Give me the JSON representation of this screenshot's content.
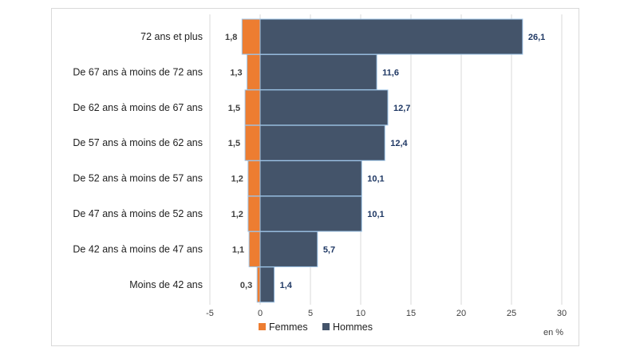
{
  "chart_data": {
    "type": "bar",
    "orientation": "horizontal",
    "stacked": true,
    "categories": [
      "72 ans et plus",
      "De 67 ans à moins de 72 ans",
      "De 62 ans à moins de 67 ans",
      "De 57 ans à moins de 62 ans",
      "De 52 ans à moins de 57 ans",
      "De 47 ans à moins de 52 ans",
      "De 42 ans à moins de 47 ans",
      "Moins de 42 ans"
    ],
    "series": [
      {
        "name": "Femmes",
        "color": "#ed7d31",
        "direction": "negative",
        "values": [
          1.8,
          1.3,
          1.5,
          1.5,
          1.2,
          1.2,
          1.1,
          0.3
        ],
        "labels": [
          "1,8",
          "1,3",
          "1,5",
          "1,5",
          "1,2",
          "1,2",
          "1,1",
          "0,3"
        ]
      },
      {
        "name": "Hommes",
        "color": "#44546a",
        "direction": "positive",
        "values": [
          26.1,
          11.6,
          12.7,
          12.4,
          10.1,
          10.1,
          5.7,
          1.4
        ],
        "labels": [
          "26,1",
          "11,6",
          "12,7",
          "12,4",
          "10,1",
          "10,1",
          "5,7",
          "1,4"
        ]
      }
    ],
    "xlim": [
      -5,
      30
    ],
    "xticks": [
      -5,
      0,
      5,
      10,
      15,
      20,
      25,
      30
    ],
    "xtick_labels": [
      "-5",
      "0",
      "5",
      "10",
      "15",
      "20",
      "25",
      "30"
    ],
    "unit_label": "en %",
    "grid": "vertical",
    "legend_position": "bottom"
  }
}
